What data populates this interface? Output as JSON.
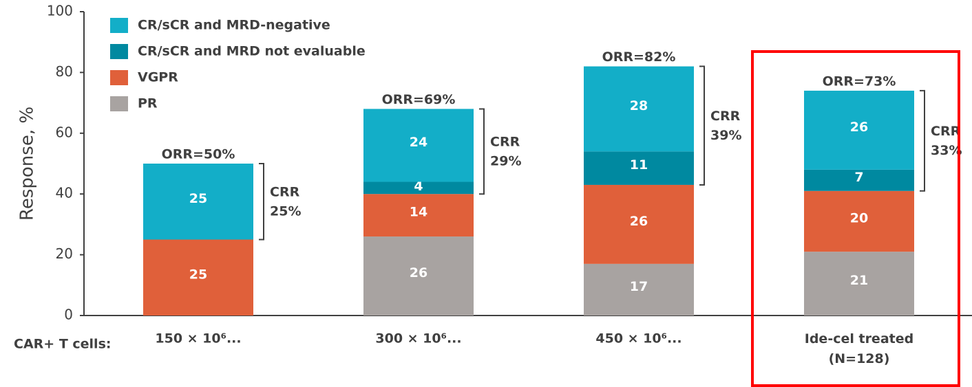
{
  "chart_data": {
    "type": "stacked-bar",
    "y_label": "Response, %",
    "x_label": "CAR+ T cells:",
    "categories": [
      "150 × 10⁶...",
      "300 × 10⁶...",
      "450 × 10⁶...",
      "Ide-cel treated\n(N=128)"
    ],
    "series": [
      {
        "name": "PR",
        "color": "#a8a3a1",
        "values": [
          null,
          26,
          17,
          21
        ]
      },
      {
        "name": "VGPR",
        "color": "#e0603a",
        "values": [
          25,
          14,
          26,
          20
        ]
      },
      {
        "name": "CR/sCR and MRD not evaluable",
        "color": "#0089a0",
        "values": [
          null,
          4,
          11,
          7
        ]
      },
      {
        "name": "CR/sCR and MRD-negative",
        "color": "#13aec8",
        "values": [
          25,
          24,
          28,
          26
        ]
      }
    ],
    "orr_labels": [
      "ORR=50%",
      "ORR=69%",
      "ORR=82%",
      "ORR=73%"
    ],
    "crr_labels": [
      "CRR\n25%",
      "CRR\n29%",
      "CRR\n39%",
      "CRR\n33%"
    ],
    "ylim": [
      0,
      100
    ],
    "yticks": [
      0,
      20,
      40,
      60,
      80,
      100
    ]
  }
}
